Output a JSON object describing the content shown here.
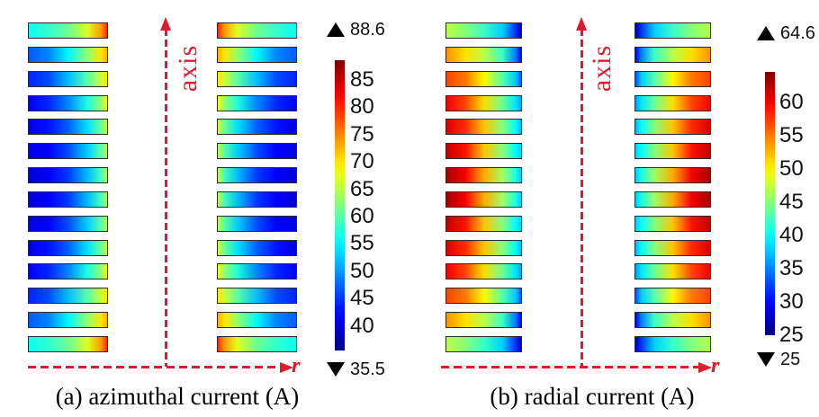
{
  "figure": {
    "vertical_axis_label": "axis",
    "horizontal_axis_label": "r",
    "accent_red": "#e01b2c",
    "background": "#ffffff"
  },
  "chart_data": [
    {
      "type": "heatmap",
      "title": "(a) azimuthal current (A)",
      "quantity": "azimuthal current",
      "units": "A",
      "colormap": "jet",
      "x_axis_label": "r",
      "y_axis_label": "axis",
      "value_min": 35.5,
      "value_max": 88.6,
      "max_marker_label": "88.6",
      "min_marker_label": "35.5",
      "colorbar_ticks": [
        85,
        80,
        75,
        70,
        65,
        60,
        55,
        50,
        45,
        40
      ],
      "rows_per_column": 14,
      "columns": 2,
      "gradient_stop_positions": [
        0,
        0.25,
        0.5,
        0.75,
        0.92,
        1
      ],
      "left_column_rows_outer_to_inner": [
        [
          56,
          58,
          61,
          67,
          74,
          80
        ],
        [
          47,
          49,
          55,
          63,
          70,
          73
        ],
        [
          44,
          46,
          52,
          60,
          66,
          70
        ],
        [
          42,
          44,
          49,
          57,
          63,
          68
        ],
        [
          41,
          43,
          47,
          54,
          61,
          66
        ],
        [
          41,
          42,
          46,
          53,
          60,
          65
        ],
        [
          40,
          42,
          45,
          52,
          59,
          65
        ],
        [
          40,
          42,
          45,
          52,
          59,
          65
        ],
        [
          41,
          42,
          46,
          53,
          60,
          65
        ],
        [
          41,
          43,
          47,
          54,
          61,
          66
        ],
        [
          42,
          44,
          49,
          57,
          63,
          68
        ],
        [
          44,
          46,
          52,
          60,
          66,
          70
        ],
        [
          47,
          49,
          55,
          63,
          70,
          73
        ],
        [
          56,
          58,
          61,
          67,
          74,
          80
        ]
      ],
      "right_column": "mirror of left column about the vertical axis"
    },
    {
      "type": "heatmap",
      "title": "(b) radial current (A)",
      "quantity": "radial current",
      "units": "A",
      "colormap": "jet",
      "x_axis_label": "r",
      "y_axis_label": "axis",
      "value_min": 25,
      "value_max": 64.6,
      "max_marker_label": "64.6",
      "min_marker_label": "25",
      "colorbar_ticks": [
        60,
        55,
        50,
        45,
        40,
        35,
        30,
        25
      ],
      "rows_per_column": 14,
      "columns": 2,
      "gradient_stop_positions": [
        0,
        0.25,
        0.5,
        0.75,
        0.92,
        1
      ],
      "left_column_rows_outer_to_inner": [
        [
          47,
          45,
          42,
          38,
          32,
          27
        ],
        [
          54,
          51,
          47,
          42,
          35,
          29
        ],
        [
          57,
          55,
          50,
          43,
          38,
          33
        ],
        [
          60,
          57,
          51,
          44,
          39,
          36
        ],
        [
          61,
          58,
          52,
          45,
          40,
          37
        ],
        [
          62,
          59,
          52,
          45,
          40,
          38
        ],
        [
          63,
          60,
          53,
          46,
          41,
          38
        ],
        [
          63,
          60,
          53,
          46,
          41,
          38
        ],
        [
          62,
          59,
          52,
          45,
          40,
          38
        ],
        [
          61,
          58,
          52,
          45,
          40,
          37
        ],
        [
          60,
          57,
          51,
          44,
          39,
          36
        ],
        [
          57,
          55,
          50,
          43,
          38,
          33
        ],
        [
          54,
          51,
          47,
          42,
          35,
          29
        ],
        [
          47,
          45,
          42,
          38,
          32,
          27
        ]
      ],
      "right_column": "mirror of left column about the vertical axis"
    }
  ]
}
